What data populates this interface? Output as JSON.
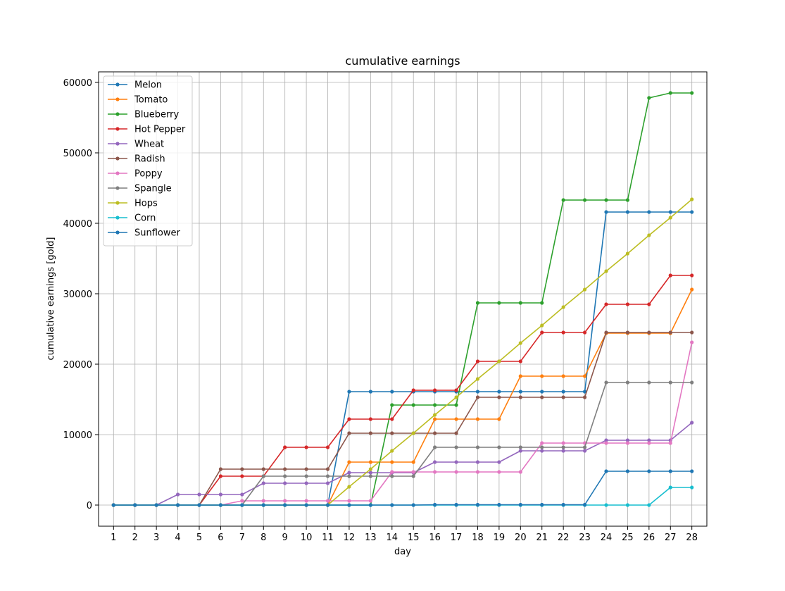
{
  "chart_data": {
    "type": "line",
    "title": "cumulative earnings",
    "xlabel": "day",
    "ylabel": "cumulative earnings [gold]",
    "x": [
      1,
      2,
      3,
      4,
      5,
      6,
      7,
      8,
      9,
      10,
      11,
      12,
      13,
      14,
      15,
      16,
      17,
      18,
      19,
      20,
      21,
      22,
      23,
      24,
      25,
      26,
      27,
      28
    ],
    "xlim": [
      0.3,
      28.7
    ],
    "ylim": [
      -3000,
      61500
    ],
    "yticks": [
      0,
      10000,
      20000,
      30000,
      40000,
      50000,
      60000
    ],
    "grid": true,
    "legend_position": "top-left",
    "series": [
      {
        "name": "Melon",
        "color": "#1f77b4",
        "values": [
          0,
          0,
          0,
          0,
          0,
          0,
          0,
          0,
          0,
          0,
          0,
          16100,
          16100,
          16100,
          16100,
          16100,
          16100,
          16100,
          16100,
          16100,
          16100,
          16100,
          16100,
          41600,
          41600,
          41600,
          41600,
          41600
        ]
      },
      {
        "name": "Tomato",
        "color": "#ff7f0e",
        "values": [
          0,
          0,
          0,
          0,
          0,
          0,
          0,
          0,
          0,
          0,
          0,
          6100,
          6100,
          6100,
          6100,
          12200,
          12200,
          12200,
          12200,
          18300,
          18300,
          18300,
          18300,
          24400,
          24400,
          24400,
          24400,
          30600
        ]
      },
      {
        "name": "Blueberry",
        "color": "#2ca02c",
        "values": [
          0,
          0,
          0,
          0,
          0,
          0,
          0,
          0,
          0,
          0,
          0,
          0,
          0,
          14200,
          14200,
          14200,
          14200,
          28700,
          28700,
          28700,
          28700,
          43300,
          43300,
          43300,
          43300,
          57800,
          58500,
          58500
        ]
      },
      {
        "name": "Hot Pepper",
        "color": "#d62728",
        "values": [
          0,
          0,
          0,
          0,
          0,
          4100,
          4100,
          4100,
          8200,
          8200,
          8200,
          12200,
          12200,
          12200,
          16300,
          16300,
          16300,
          20400,
          20400,
          20400,
          24500,
          24500,
          24500,
          28500,
          28500,
          28500,
          32600,
          32600
        ]
      },
      {
        "name": "Wheat",
        "color": "#9467bd",
        "values": [
          0,
          0,
          0,
          1500,
          1500,
          1500,
          1500,
          3100,
          3100,
          3100,
          3100,
          4600,
          4600,
          4600,
          4600,
          6100,
          6100,
          6100,
          6100,
          7700,
          7700,
          7700,
          7700,
          9200,
          9200,
          9200,
          9200,
          11700
        ]
      },
      {
        "name": "Radish",
        "color": "#8c564b",
        "values": [
          0,
          0,
          0,
          0,
          0,
          5100,
          5100,
          5100,
          5100,
          5100,
          5100,
          10200,
          10200,
          10200,
          10200,
          10200,
          10200,
          15300,
          15300,
          15300,
          15300,
          15300,
          15300,
          24500,
          24500,
          24500,
          24500,
          24500
        ]
      },
      {
        "name": "Poppy",
        "color": "#e377c2",
        "values": [
          0,
          0,
          0,
          0,
          0,
          0,
          600,
          600,
          600,
          600,
          600,
          600,
          600,
          4700,
          4700,
          4700,
          4700,
          4700,
          4700,
          4700,
          8800,
          8800,
          8800,
          8800,
          8800,
          8800,
          8800,
          23100
        ]
      },
      {
        "name": "Spangle",
        "color": "#7f7f7f",
        "values": [
          0,
          0,
          0,
          0,
          0,
          0,
          0,
          4100,
          4100,
          4100,
          4100,
          4100,
          4100,
          4100,
          4100,
          8200,
          8200,
          8200,
          8200,
          8200,
          8200,
          8200,
          8200,
          17400,
          17400,
          17400,
          17400,
          17400
        ]
      },
      {
        "name": "Hops",
        "color": "#bcbd22",
        "values": [
          0,
          0,
          0,
          0,
          0,
          0,
          0,
          0,
          0,
          0,
          0,
          2600,
          5100,
          7700,
          10200,
          12800,
          15300,
          17900,
          20400,
          23000,
          25500,
          28100,
          30600,
          33200,
          35700,
          38300,
          40800,
          43400
        ]
      },
      {
        "name": "Corn",
        "color": "#17becf",
        "values": [
          0,
          0,
          0,
          0,
          0,
          0,
          0,
          0,
          0,
          0,
          0,
          0,
          0,
          0,
          0,
          0,
          0,
          0,
          0,
          0,
          0,
          0,
          0,
          0,
          0,
          0,
          2500,
          2500
        ]
      },
      {
        "name": "Sunflower",
        "color": "#1f77b4",
        "values": [
          0,
          0,
          0,
          0,
          0,
          0,
          0,
          0,
          0,
          0,
          0,
          0,
          0,
          0,
          0,
          50,
          50,
          50,
          50,
          50,
          50,
          50,
          50,
          4800,
          4800,
          4800,
          4800,
          4800
        ]
      }
    ]
  }
}
